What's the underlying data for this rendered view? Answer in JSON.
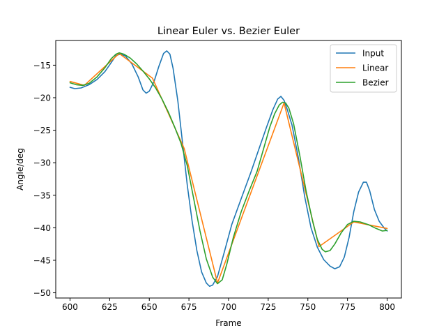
{
  "chart_data": {
    "type": "line",
    "title": "Linear Euler vs. Bezier Euler",
    "xlabel": "Frame",
    "ylabel": "Angle/deg",
    "xlim": [
      591,
      809
    ],
    "ylim": [
      -50.8,
      -11.2
    ],
    "xticks": [
      600,
      625,
      650,
      675,
      700,
      725,
      750,
      775,
      800
    ],
    "yticks": [
      -15,
      -20,
      -25,
      -30,
      -35,
      -40,
      -45,
      -50
    ],
    "grid": false,
    "legend_position": "top-right",
    "series": [
      {
        "name": "Input",
        "color": "#1f77b4",
        "points": [
          [
            600,
            -18.4
          ],
          [
            603,
            -18.6
          ],
          [
            607,
            -18.5
          ],
          [
            612,
            -18.0
          ],
          [
            617,
            -17.2
          ],
          [
            622,
            -16.0
          ],
          [
            626,
            -14.6
          ],
          [
            629,
            -13.5
          ],
          [
            632,
            -13.3
          ],
          [
            635,
            -13.6
          ],
          [
            639,
            -14.8
          ],
          [
            643,
            -16.8
          ],
          [
            646,
            -18.8
          ],
          [
            648,
            -19.3
          ],
          [
            650,
            -19.0
          ],
          [
            653,
            -17.5
          ],
          [
            656,
            -15.2
          ],
          [
            659,
            -13.2
          ],
          [
            661,
            -12.8
          ],
          [
            663,
            -13.3
          ],
          [
            665,
            -15.5
          ],
          [
            668,
            -20.5
          ],
          [
            671,
            -27.0
          ],
          [
            674,
            -33.5
          ],
          [
            677,
            -39.0
          ],
          [
            680,
            -43.5
          ],
          [
            683,
            -46.8
          ],
          [
            686,
            -48.5
          ],
          [
            688,
            -49.0
          ],
          [
            690,
            -48.8
          ],
          [
            693,
            -47.5
          ],
          [
            697,
            -44.0
          ],
          [
            702,
            -39.5
          ],
          [
            708,
            -35.5
          ],
          [
            714,
            -31.5
          ],
          [
            719,
            -28.0
          ],
          [
            724,
            -24.5
          ],
          [
            728,
            -21.8
          ],
          [
            731,
            -20.2
          ],
          [
            733,
            -19.8
          ],
          [
            735,
            -20.4
          ],
          [
            737,
            -21.8
          ],
          [
            740,
            -24.2
          ],
          [
            744,
            -29.2
          ],
          [
            748,
            -35.2
          ],
          [
            752,
            -40.0
          ],
          [
            756,
            -43.0
          ],
          [
            760,
            -44.9
          ],
          [
            764,
            -45.9
          ],
          [
            767,
            -46.3
          ],
          [
            770,
            -46.0
          ],
          [
            773,
            -44.5
          ],
          [
            776,
            -41.5
          ],
          [
            779,
            -37.5
          ],
          [
            782,
            -34.5
          ],
          [
            785,
            -33.0
          ],
          [
            787,
            -33.0
          ],
          [
            789,
            -34.3
          ],
          [
            792,
            -37.2
          ],
          [
            795,
            -39.0
          ],
          [
            798,
            -40.0
          ],
          [
            800,
            -40.5
          ]
        ]
      },
      {
        "name": "Linear",
        "color": "#ff7f0e",
        "points": [
          [
            600,
            -17.5
          ],
          [
            609,
            -18.1
          ],
          [
            631,
            -13.2
          ],
          [
            652,
            -17.0
          ],
          [
            672,
            -27.8
          ],
          [
            693,
            -48.5
          ],
          [
            735,
            -20.8
          ],
          [
            757,
            -42.9
          ],
          [
            779,
            -39.1
          ],
          [
            800,
            -40.1
          ]
        ]
      },
      {
        "name": "Bezier",
        "color": "#2ca02c",
        "points": [
          [
            600,
            -17.7
          ],
          [
            604,
            -18.0
          ],
          [
            608,
            -18.1
          ],
          [
            612,
            -17.8
          ],
          [
            617,
            -16.8
          ],
          [
            622,
            -15.4
          ],
          [
            626,
            -14.0
          ],
          [
            629,
            -13.3
          ],
          [
            631,
            -13.1
          ],
          [
            634,
            -13.3
          ],
          [
            638,
            -13.9
          ],
          [
            642,
            -14.8
          ],
          [
            646,
            -15.9
          ],
          [
            650,
            -17.1
          ],
          [
            654,
            -18.5
          ],
          [
            658,
            -20.2
          ],
          [
            662,
            -22.2
          ],
          [
            666,
            -24.5
          ],
          [
            670,
            -27.0
          ],
          [
            674,
            -30.5
          ],
          [
            678,
            -35.5
          ],
          [
            682,
            -40.5
          ],
          [
            686,
            -44.8
          ],
          [
            690,
            -47.6
          ],
          [
            693,
            -48.6
          ],
          [
            696,
            -48.0
          ],
          [
            699,
            -45.5
          ],
          [
            703,
            -41.5
          ],
          [
            708,
            -37.5
          ],
          [
            713,
            -34.3
          ],
          [
            718,
            -31.3
          ],
          [
            722,
            -27.9
          ],
          [
            726,
            -24.5
          ],
          [
            729,
            -22.5
          ],
          [
            732,
            -21.1
          ],
          [
            734,
            -20.7
          ],
          [
            736,
            -20.8
          ],
          [
            738,
            -21.6
          ],
          [
            741,
            -24.0
          ],
          [
            745,
            -29.0
          ],
          [
            749,
            -34.5
          ],
          [
            753,
            -39.0
          ],
          [
            756,
            -41.8
          ],
          [
            759,
            -43.3
          ],
          [
            761,
            -43.7
          ],
          [
            764,
            -43.5
          ],
          [
            767,
            -42.5
          ],
          [
            771,
            -40.8
          ],
          [
            775,
            -39.5
          ],
          [
            779,
            -39.0
          ],
          [
            783,
            -39.1
          ],
          [
            788,
            -39.5
          ],
          [
            793,
            -40.1
          ],
          [
            797,
            -40.5
          ],
          [
            800,
            -40.4
          ]
        ]
      }
    ]
  }
}
